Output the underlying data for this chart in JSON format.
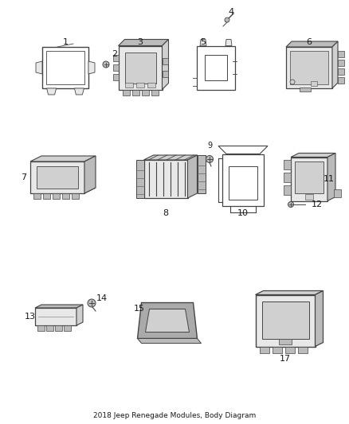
{
  "title": "2018 Jeep Renegade Modules, Body Diagram",
  "background": "#ffffff",
  "figsize": [
    4.38,
    5.33
  ],
  "dpi": 100,
  "label_color": "#1a1a1a",
  "line_color": "#444444",
  "part_color": "#888888",
  "part_fill": "#e8e8e8",
  "dark_fill": "#bbbbbb",
  "mid_fill": "#d0d0d0"
}
